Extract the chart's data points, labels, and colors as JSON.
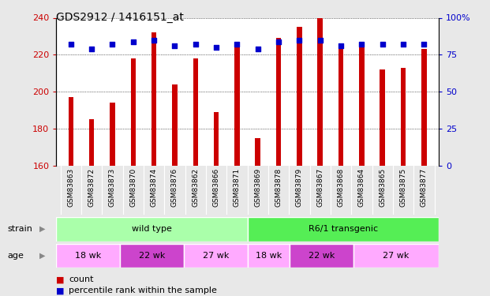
{
  "title": "GDS2912 / 1416151_at",
  "samples": [
    "GSM83863",
    "GSM83872",
    "GSM83873",
    "GSM83870",
    "GSM83874",
    "GSM83876",
    "GSM83862",
    "GSM83866",
    "GSM83871",
    "GSM83869",
    "GSM83878",
    "GSM83879",
    "GSM83867",
    "GSM83868",
    "GSM83864",
    "GSM83865",
    "GSM83875",
    "GSM83877"
  ],
  "counts": [
    197,
    185,
    194,
    218,
    232,
    204,
    218,
    189,
    224,
    175,
    229,
    235,
    240,
    226,
    226,
    212,
    213,
    223
  ],
  "percentiles": [
    82,
    79,
    82,
    84,
    85,
    81,
    82,
    80,
    82,
    79,
    84,
    85,
    85,
    81,
    82,
    82,
    82,
    82
  ],
  "ymin": 160,
  "ymax": 240,
  "yticks": [
    160,
    180,
    200,
    220,
    240
  ],
  "right_yticks": [
    0,
    25,
    50,
    75,
    100
  ],
  "bar_color": "#cc0000",
  "dot_color": "#0000cc",
  "fig_bg_color": "#e8e8e8",
  "plot_bg_color": "#ffffff",
  "xlabel_bg_color": "#c8c8c8",
  "strain_groups": [
    {
      "label": "wild type",
      "start": 0,
      "end": 9,
      "color": "#aaffaa"
    },
    {
      "label": "R6/1 transgenic",
      "start": 9,
      "end": 18,
      "color": "#55ee55"
    }
  ],
  "age_groups": [
    {
      "label": "18 wk",
      "start": 0,
      "end": 3,
      "color": "#ffaaff"
    },
    {
      "label": "22 wk",
      "start": 3,
      "end": 6,
      "color": "#cc44cc"
    },
    {
      "label": "27 wk",
      "start": 6,
      "end": 9,
      "color": "#ffaaff"
    },
    {
      "label": "18 wk",
      "start": 9,
      "end": 11,
      "color": "#ffaaff"
    },
    {
      "label": "22 wk",
      "start": 11,
      "end": 14,
      "color": "#cc44cc"
    },
    {
      "label": "27 wk",
      "start": 14,
      "end": 18,
      "color": "#ffaaff"
    }
  ],
  "strain_label": "strain",
  "age_label": "age",
  "legend_count_label": "count",
  "legend_pct_label": "percentile rank within the sample",
  "tick_color_left": "#cc0000",
  "tick_color_right": "#0000cc",
  "bar_width": 0.25
}
